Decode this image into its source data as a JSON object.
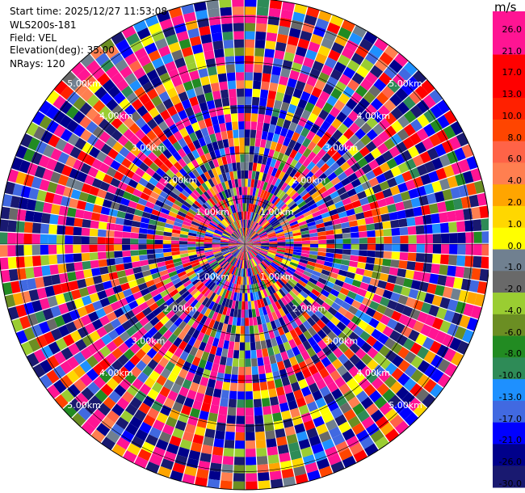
{
  "info": {
    "start_time": "Start time: 2025/12/27 11:53:08",
    "station": "WLS200s-181",
    "field": "Field: VEL",
    "elevation": "Elevation(deg): 35.00",
    "nrays": "NRays: 120"
  },
  "colorbar": {
    "unit": "m/s",
    "labels": [
      "26.0",
      "21.0",
      "17.0",
      "13.0",
      "10.0",
      "8.0",
      "6.0",
      "4.0",
      "2.0",
      "1.0",
      "0.0",
      "-1.0",
      "-2.0",
      "-4.0",
      "-6.0",
      "-8.0",
      "-10.0",
      "-13.0",
      "-17.0",
      "-21.0",
      "-26.0",
      "-30.0"
    ],
    "colors": [
      "#ff1493",
      "#ff1493",
      "#ff0000",
      "#ff0000",
      "#ff2000",
      "#ff4500",
      "#ff6347",
      "#ff7f50",
      "#ffa500",
      "#ffd700",
      "#ffff00",
      "#708090",
      "#696969",
      "#9acd32",
      "#6b8e23",
      "#228b22",
      "#2e8b57",
      "#1e90ff",
      "#4169e1",
      "#0000ff",
      "#00008b",
      "#191970"
    ]
  },
  "chart_data": {
    "type": "heatmap",
    "subtype": "ppi",
    "field": "VEL",
    "unit": "m/s",
    "nrays": 120,
    "elevation_deg": 35.0,
    "max_range_km": 5.4,
    "range_ring_labels": [
      "1.00km",
      "2.00km",
      "3.00km",
      "4.00km",
      "5.00km"
    ],
    "value_range": [
      -30.0,
      30.0
    ],
    "colorbar_ticks": [
      26.0,
      21.0,
      17.0,
      13.0,
      10.0,
      8.0,
      6.0,
      4.0,
      2.0,
      1.0,
      0.0,
      -1.0,
      -2.0,
      -4.0,
      -6.0,
      -8.0,
      -10.0,
      -13.0,
      -17.0,
      -21.0,
      -26.0,
      -30.0
    ]
  }
}
